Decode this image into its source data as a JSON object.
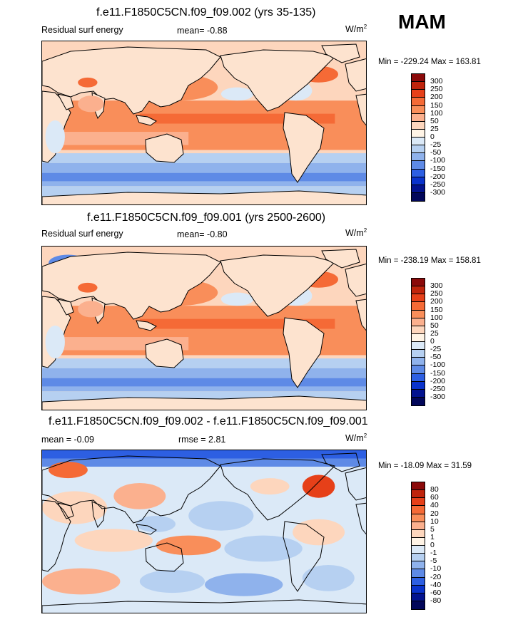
{
  "season": "MAM",
  "panels": [
    {
      "title": "f.e11.F1850C5CN.f09_f09.002 (yrs 35-135)",
      "left_label": "Residual surf energy",
      "center_label": "mean=  -0.88",
      "units": "W/m",
      "units_sup": "2",
      "minmax": "Min = -229.24 Max = 163.81"
    },
    {
      "title": "f.e11.F1850C5CN.f09_f09.001 (yrs 2500-2600)",
      "left_label": "Residual surf energy",
      "center_label": "mean=  -0.80",
      "units": "W/m",
      "units_sup": "2",
      "minmax": "Min = -238.19 Max = 158.81"
    },
    {
      "title": "f.e11.F1850C5CN.f09_f09.002 - f.e11.F1850C5CN.f09_f09.001",
      "left_label": "mean =  -0.09",
      "center_label": "rmse =   2.81",
      "units": "W/m",
      "units_sup": "2",
      "minmax": "Min = -18.09 Max =  31.59"
    }
  ],
  "chart_data": [
    {
      "type": "heatmap",
      "title": "f.e11.F1850C5CN.f09_f09.002 (yrs 35-135)",
      "variable": "Residual surf energy",
      "mean": -0.88,
      "min": -229.24,
      "max": 163.81,
      "units": "W/m2",
      "colorbar_levels": [
        "300",
        "250",
        "200",
        "150",
        "100",
        "50",
        "25",
        "0",
        "-25",
        "-50",
        "-100",
        "-150",
        "-200",
        "-250",
        "-300"
      ],
      "colorbar_colors": [
        "#8b0a0a",
        "#c0240c",
        "#e64019",
        "#f56a36",
        "#f98e5a",
        "#fbb08e",
        "#fdd6bd",
        "#fff4e6",
        "#dbe9f7",
        "#b6d0f1",
        "#8fb2ec",
        "#5e8ae6",
        "#2d5fe2",
        "#0a33cc",
        "#03138f",
        "#02075a"
      ]
    },
    {
      "type": "heatmap",
      "title": "f.e11.F1850C5CN.f09_f09.001 (yrs 2500-2600)",
      "variable": "Residual surf energy",
      "mean": -0.8,
      "min": -238.19,
      "max": 158.81,
      "units": "W/m2",
      "colorbar_levels": [
        "300",
        "250",
        "200",
        "150",
        "100",
        "50",
        "25",
        "0",
        "-25",
        "-50",
        "-100",
        "-150",
        "-200",
        "-250",
        "-300"
      ],
      "colorbar_colors": [
        "#8b0a0a",
        "#c0240c",
        "#e64019",
        "#f56a36",
        "#f98e5a",
        "#fbb08e",
        "#fdd6bd",
        "#fff4e6",
        "#dbe9f7",
        "#b6d0f1",
        "#8fb2ec",
        "#5e8ae6",
        "#2d5fe2",
        "#0a33cc",
        "#03138f",
        "#02075a"
      ]
    },
    {
      "type": "heatmap",
      "title": "f.e11.F1850C5CN.f09_f09.002 - f.e11.F1850C5CN.f09_f09.001",
      "mean": -0.09,
      "rmse": 2.81,
      "min": -18.09,
      "max": 31.59,
      "units": "W/m2",
      "colorbar_levels": [
        "80",
        "60",
        "40",
        "20",
        "10",
        "5",
        "1",
        "0",
        "-1",
        "-5",
        "-10",
        "-20",
        "-40",
        "-60",
        "-80"
      ],
      "colorbar_colors": [
        "#8b0a0a",
        "#c0240c",
        "#e64019",
        "#f56a36",
        "#f98e5a",
        "#fbb08e",
        "#fdd6bd",
        "#fff4e6",
        "#dbe9f7",
        "#b6d0f1",
        "#8fb2ec",
        "#5e8ae6",
        "#2d5fe2",
        "#0a33cc",
        "#03138f",
        "#02075a"
      ]
    }
  ]
}
